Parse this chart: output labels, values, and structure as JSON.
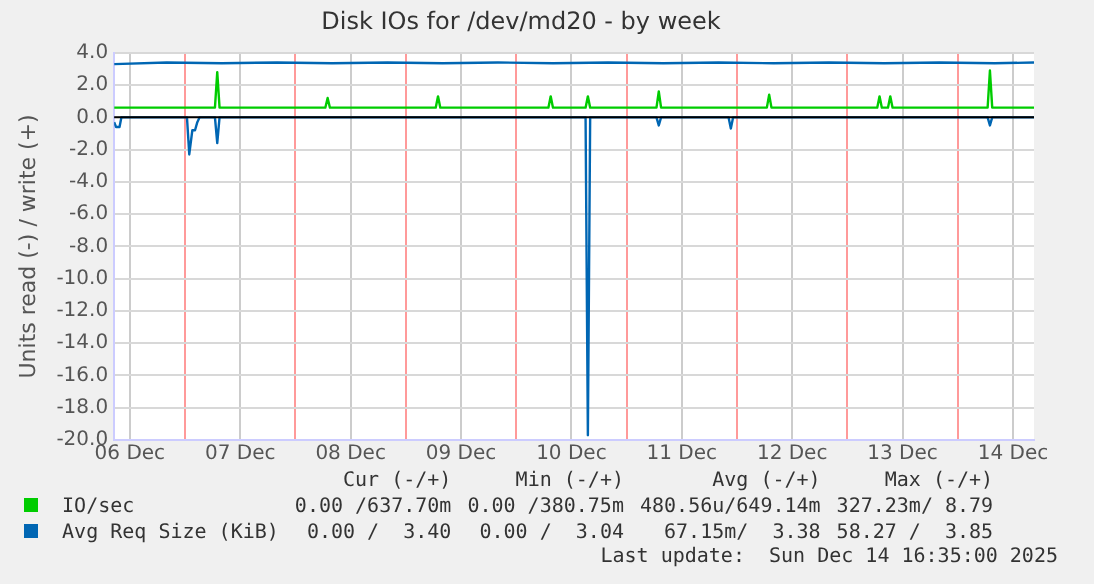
{
  "chart_data": {
    "type": "line",
    "title": "Disk IOs for /dev/md20 - by week",
    "ylabel": "Units read (-) / write (+)",
    "xlim": [
      "2025-12-06T08:35",
      "2025-12-14T16:35"
    ],
    "xticks": [
      {
        "value": "2025-12-06T12:00",
        "label": "06 Dec"
      },
      {
        "value": "2025-12-07T12:00",
        "label": "07 Dec"
      },
      {
        "value": "2025-12-08T12:00",
        "label": "08 Dec"
      },
      {
        "value": "2025-12-09T12:00",
        "label": "09 Dec"
      },
      {
        "value": "2025-12-10T12:00",
        "label": "10 Dec"
      },
      {
        "value": "2025-12-11T12:00",
        "label": "11 Dec"
      },
      {
        "value": "2025-12-12T12:00",
        "label": "12 Dec"
      },
      {
        "value": "2025-12-13T12:00",
        "label": "13 Dec"
      },
      {
        "value": "2025-12-14T12:00",
        "label": "14 Dec"
      },
      {
        "value": "2025-12-07T00:00",
        "label": null
      },
      {
        "value": "2025-12-08T00:00",
        "label": null
      },
      {
        "value": "2025-12-09T00:00",
        "label": null
      },
      {
        "value": "2025-12-10T00:00",
        "label": null
      },
      {
        "value": "2025-12-11T00:00",
        "label": null
      },
      {
        "value": "2025-12-12T00:00",
        "label": null
      },
      {
        "value": "2025-12-13T00:00",
        "label": null
      },
      {
        "value": "2025-12-14T00:00",
        "label": null
      }
    ],
    "ylim": [
      -20,
      4
    ],
    "yticks": [
      {
        "value": 4,
        "label": "4.0"
      },
      {
        "value": 2,
        "label": "2.0"
      },
      {
        "value": 0,
        "label": "0.0"
      },
      {
        "value": -2,
        "label": "-2.0"
      },
      {
        "value": -4,
        "label": "-4.0"
      },
      {
        "value": -6,
        "label": "-6.0"
      },
      {
        "value": -8,
        "label": "-8.0"
      },
      {
        "value": -10,
        "label": "-10.0"
      },
      {
        "value": -12,
        "label": "-12.0"
      },
      {
        "value": -14,
        "label": "-14.0"
      },
      {
        "value": -16,
        "label": "-16.0"
      },
      {
        "value": -18,
        "label": "-18.0"
      },
      {
        "value": -20,
        "label": "-20.0"
      }
    ],
    "grid": true,
    "legend": "bottom",
    "marker": "none",
    "line_style": "solid",
    "series": [
      {
        "name": "IO/sec",
        "color": "#00cc00",
        "x": [
          "2025-12-06T08:35",
          "2025-12-07T06:30",
          "2025-12-07T07:00",
          "2025-12-07T07:30",
          "2025-12-08T06:30",
          "2025-12-08T07:00",
          "2025-12-08T07:30",
          "2025-12-09T06:30",
          "2025-12-09T07:00",
          "2025-12-09T07:30",
          "2025-12-10T07:00",
          "2025-12-10T07:30",
          "2025-12-10T08:00",
          "2025-12-10T15:05",
          "2025-12-10T15:35",
          "2025-12-10T16:05",
          "2025-12-11T06:30",
          "2025-12-11T07:00",
          "2025-12-11T07:30",
          "2025-12-12T06:30",
          "2025-12-12T07:00",
          "2025-12-12T07:30",
          "2025-12-13T06:30",
          "2025-12-13T07:00",
          "2025-12-13T07:30",
          "2025-12-13T08:50",
          "2025-12-13T09:20",
          "2025-12-13T09:50",
          "2025-12-14T06:30",
          "2025-12-14T07:00",
          "2025-12-14T07:30",
          "2025-12-14T16:35"
        ],
        "values": [
          0.6,
          0.6,
          2.8,
          0.6,
          0.6,
          1.2,
          0.6,
          0.6,
          1.3,
          0.6,
          0.6,
          1.3,
          0.6,
          0.6,
          1.3,
          0.6,
          0.6,
          1.6,
          0.6,
          0.6,
          1.4,
          0.6,
          0.6,
          1.3,
          0.6,
          0.6,
          1.3,
          0.6,
          0.6,
          2.9,
          0.6,
          0.6
        ]
      },
      {
        "name": "Avg Req Size (KiB)",
        "color": "#0066b3",
        "x": [
          "2025-12-06T08:35",
          "2025-12-06T20:00",
          "2025-12-07T08:00",
          "2025-12-07T20:00",
          "2025-12-08T08:00",
          "2025-12-08T20:00",
          "2025-12-09T08:00",
          "2025-12-09T20:00",
          "2025-12-10T08:00",
          "2025-12-10T20:00",
          "2025-12-11T08:00",
          "2025-12-11T20:00",
          "2025-12-12T08:00",
          "2025-12-12T20:00",
          "2025-12-13T08:00",
          "2025-12-13T20:00",
          "2025-12-14T08:00",
          "2025-12-14T16:35"
        ],
        "values": [
          3.3,
          3.4,
          3.35,
          3.4,
          3.35,
          3.4,
          3.35,
          3.4,
          3.35,
          3.4,
          3.35,
          3.4,
          3.35,
          3.4,
          3.35,
          3.4,
          3.35,
          3.4
        ]
      },
      {
        "color": "#0066b3",
        "x": [
          "2025-12-06T08:35",
          "2025-12-06T09:00",
          "2025-12-06T09:45",
          "2025-12-06T10:10",
          "2025-12-07T00:25",
          "2025-12-07T00:55",
          "2025-12-07T01:35",
          "2025-12-07T02:10",
          "2025-12-07T02:40",
          "2025-12-07T03:10",
          "2025-12-07T06:30",
          "2025-12-07T07:00",
          "2025-12-07T07:30",
          "2025-12-10T15:05",
          "2025-12-10T15:35",
          "2025-12-10T16:05",
          "2025-12-11T06:30",
          "2025-12-11T07:00",
          "2025-12-11T07:30",
          "2025-12-11T22:10",
          "2025-12-11T22:40",
          "2025-12-11T23:10",
          "2025-12-14T06:30",
          "2025-12-14T07:00",
          "2025-12-14T07:30",
          "2025-12-14T16:35"
        ],
        "values": [
          -0.3,
          -0.6,
          -0.6,
          0,
          0,
          -2.3,
          -0.8,
          -0.8,
          -0.3,
          0,
          0,
          -1.6,
          0,
          0,
          -19.7,
          0,
          0,
          -0.5,
          0,
          0,
          -0.7,
          0,
          0,
          -0.5,
          0,
          0
        ]
      }
    ],
    "annotations": [
      "Cur (-/+)",
      "Min (-/+)",
      "Avg (-/+)",
      "Max (-/+)",
      "0.00 /637.70m",
      "0.00 /380.75m",
      "480.56u/649.14m",
      "327.23m/ 8.79",
      "0.00 /  3.40",
      "0.00 /  3.04",
      "67.15m/  3.38",
      "58.27 /  3.85",
      "Last update:  Sun Dec 14 16:35:00 2025"
    ]
  }
}
